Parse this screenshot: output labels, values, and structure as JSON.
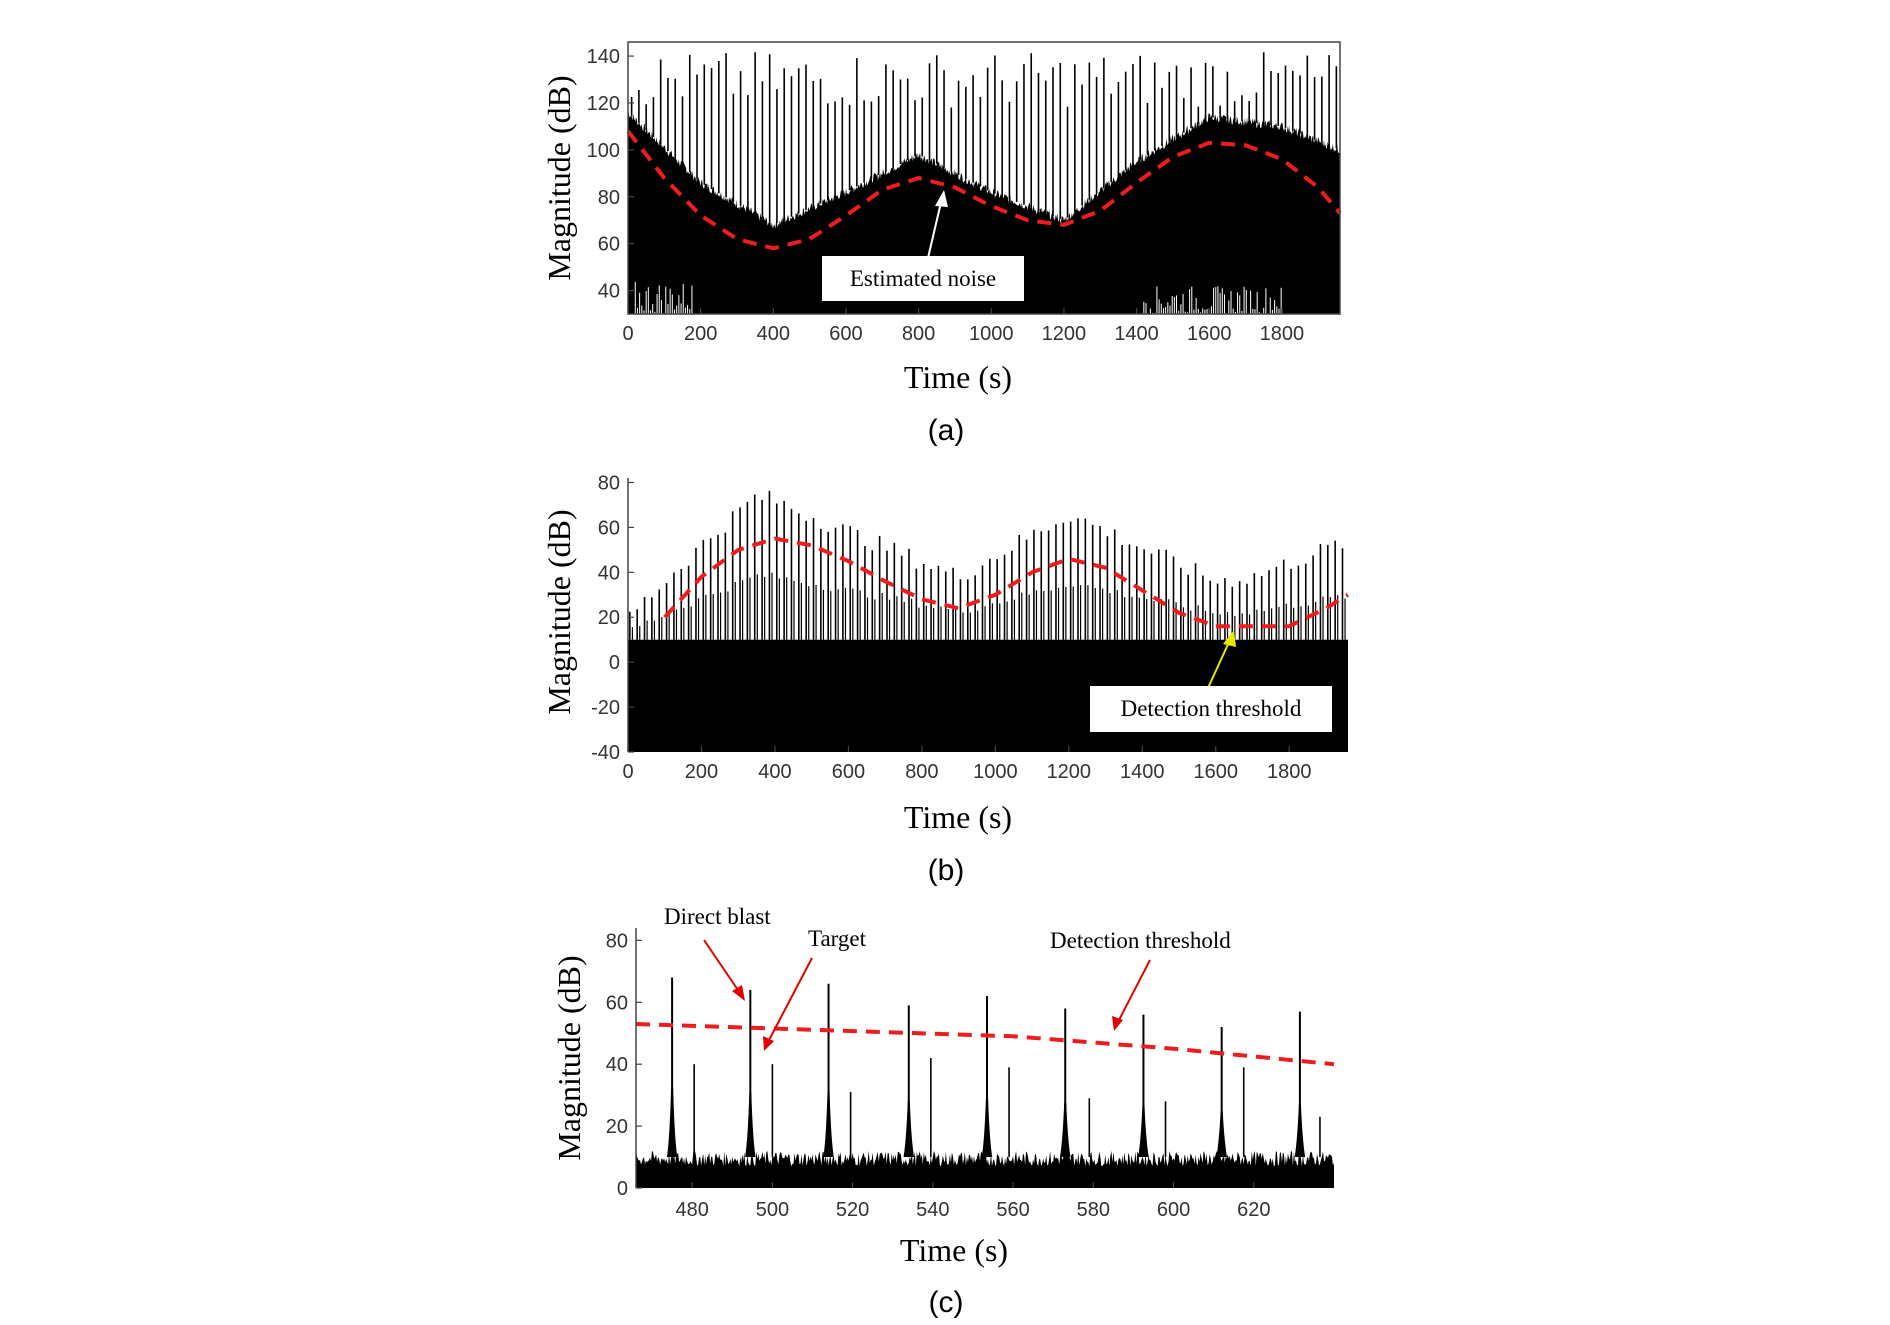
{
  "chart_data": [
    {
      "type": "line",
      "panel": "(a)",
      "xlabel": "Time (s)",
      "ylabel": "Magnitude (dB)",
      "xlim": [
        0,
        1960
      ],
      "ylim": [
        30,
        146
      ],
      "xticks": [
        0,
        200,
        400,
        600,
        800,
        1000,
        1200,
        1400,
        1600,
        1800
      ],
      "yticks": [
        40,
        60,
        80,
        100,
        120,
        140
      ],
      "grid": false,
      "annotations": [
        {
          "text": "Estimated noise",
          "target": [
            860,
            86
          ],
          "box_at": [
            800,
            45
          ]
        }
      ],
      "series": [
        {
          "name": "",
          "style": "black-signal",
          "pulse_period_s": 20,
          "noise_floor_envelope": {
            "x": [
              0,
              200,
              400,
              600,
              800,
              1000,
              1200,
              1400,
              1600,
              1800,
              1960
            ],
            "y": [
              116,
              86,
              68,
              82,
              98,
              82,
              70,
              95,
              114,
              110,
              100
            ]
          },
          "pulse_peak_range": [
            118,
            142
          ]
        },
        {
          "name": "",
          "style": "red-dashed",
          "x": [
            0,
            100,
            200,
            300,
            400,
            500,
            600,
            700,
            800,
            900,
            1000,
            1100,
            1200,
            1300,
            1400,
            1500,
            1600,
            1700,
            1800,
            1900,
            1960
          ],
          "y": [
            108,
            88,
            72,
            62,
            58,
            62,
            72,
            83,
            88,
            84,
            76,
            70,
            68,
            74,
            86,
            97,
            103,
            102,
            96,
            84,
            73
          ]
        }
      ]
    },
    {
      "type": "line",
      "panel": "(b)",
      "xlabel": "Time (s)",
      "ylabel": "Magnitude (dB)",
      "xlim": [
        0,
        1960
      ],
      "ylim": [
        -40,
        82
      ],
      "xticks": [
        0,
        200,
        400,
        600,
        800,
        1000,
        1200,
        1400,
        1600,
        1800
      ],
      "yticks": [
        -40,
        -20,
        0,
        20,
        40,
        60,
        80
      ],
      "grid": false,
      "annotations": [
        {
          "text": "Detection threshold",
          "target": [
            1640,
            16
          ],
          "box_at": [
            1570,
            -21
          ]
        }
      ],
      "series": [
        {
          "name": "",
          "style": "black-signal",
          "pulse_period_s": 20,
          "noise_floor_level": 10,
          "peak_envelope": {
            "x": [
              0,
              200,
              350,
              400,
              600,
              900,
              1200,
              1600,
              1700,
              1960
            ],
            "y": [
              20,
              52,
              74,
              72,
              58,
              38,
              66,
              36,
              38,
              54
            ]
          }
        },
        {
          "name": "",
          "style": "red-dashed",
          "x": [
            100,
            200,
            300,
            400,
            500,
            600,
            700,
            800,
            900,
            1000,
            1100,
            1200,
            1300,
            1400,
            1500,
            1600,
            1700,
            1800,
            1900,
            1960
          ],
          "y": [
            20,
            38,
            50,
            55,
            52,
            45,
            36,
            28,
            24,
            30,
            40,
            46,
            42,
            32,
            22,
            16,
            16,
            16,
            24,
            30
          ]
        }
      ]
    },
    {
      "type": "line",
      "panel": "(c)",
      "xlabel": "Time (s)",
      "ylabel": "Magnitude (dB)",
      "xlim": [
        466,
        640
      ],
      "ylim": [
        0,
        84
      ],
      "xticks": [
        480,
        500,
        520,
        540,
        560,
        580,
        600,
        620
      ],
      "yticks": [
        0,
        20,
        40,
        60,
        80
      ],
      "grid": false,
      "annotations": [
        {
          "text": "Direct blast",
          "target": [
            494.5,
            59
          ],
          "label_at": [
            485,
            87
          ]
        },
        {
          "text": "Target",
          "target": [
            498.5,
            42
          ],
          "label_at": [
            515,
            79
          ]
        },
        {
          "text": "Detection threshold",
          "target": [
            590,
            49
          ],
          "label_at": [
            598,
            78
          ]
        }
      ],
      "series": [
        {
          "name": "",
          "style": "black-signal",
          "noise_floor_level": 10,
          "direct_blast_times": [
            475,
            494.5,
            514,
            534,
            553.5,
            573,
            592.5,
            612,
            631.5
          ],
          "direct_blast_peaks": [
            68,
            64,
            66,
            59,
            62,
            58,
            56,
            52,
            57
          ],
          "target_times": [
            480.5,
            500,
            519.5,
            539.5,
            559,
            579,
            598,
            617.5,
            636.5
          ],
          "target_peaks": [
            40,
            40,
            31,
            42,
            39,
            29,
            28,
            39,
            23
          ]
        },
        {
          "name": "",
          "style": "red-dashed",
          "x": [
            466,
            560,
            600,
            640
          ],
          "y": [
            53,
            49,
            45,
            40
          ]
        }
      ]
    }
  ]
}
